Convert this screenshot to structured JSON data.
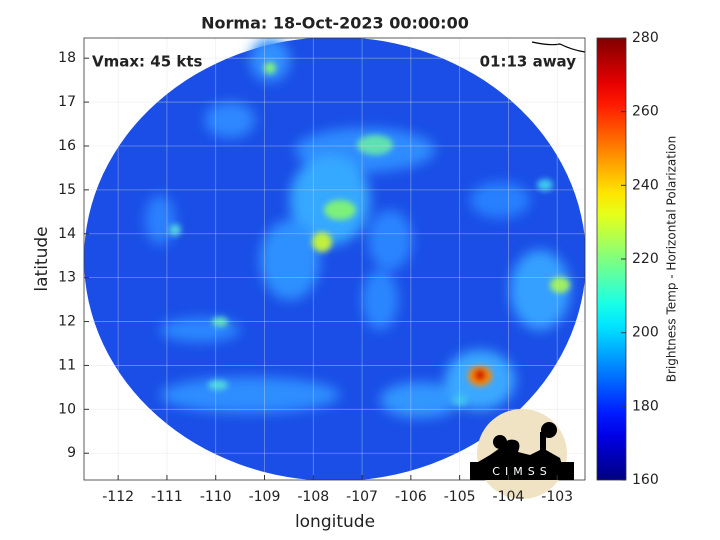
{
  "chart_data": {
    "type": "image",
    "title": "Norma: 18-Oct-2023 00:00:00",
    "annotations": [
      "Vmax: 45 kts",
      "01:13 away"
    ],
    "xlabel": "longitude",
    "ylabel": "latitude",
    "xlim": [
      -112.7,
      -102.43
    ],
    "ylim": [
      8.39,
      18.46
    ],
    "xticks": [
      -112,
      -111,
      -110,
      -109,
      -108,
      -107,
      -106,
      -105,
      -104,
      -103
    ],
    "yticks": [
      9,
      10,
      11,
      12,
      13,
      14,
      15,
      16,
      17,
      18
    ],
    "grid": true,
    "colorbar": {
      "label": "Brightness Temp - Horizontal Polarization",
      "colormap": "jet",
      "clim": [
        160,
        280
      ],
      "ticks": [
        160,
        180,
        200,
        220,
        240,
        260,
        280
      ]
    }
  },
  "logo": {
    "text": "CIMSS"
  }
}
